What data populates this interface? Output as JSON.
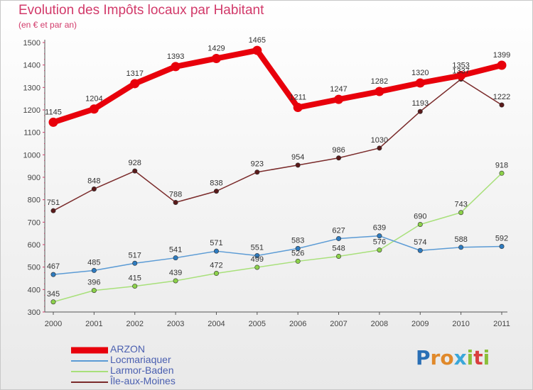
{
  "title": "Evolution des Impôts locaux par Habitant",
  "subtitle": "(en € et par an)",
  "logo": {
    "text": "Proxiti",
    "letters": [
      "P",
      "r",
      "o",
      "x",
      "i",
      "t",
      "i"
    ],
    "colors": [
      "#2a6fb5",
      "#e0892b",
      "#e0892b",
      "#3aa7d9",
      "#8bbf3a",
      "#d93f3f",
      "#8bbf3a"
    ]
  },
  "chart_data": {
    "type": "line",
    "x": [
      "2000",
      "2001",
      "2002",
      "2003",
      "2004",
      "2005",
      "2006",
      "2007",
      "2008",
      "2009",
      "2010",
      "2011"
    ],
    "ylim": [
      300,
      1500
    ],
    "yticks": [
      300,
      400,
      500,
      600,
      700,
      800,
      900,
      1000,
      1100,
      1200,
      1300,
      1400,
      1500
    ],
    "grid": false,
    "legend_position": "bottom-left",
    "series": [
      {
        "name": "ARZON",
        "color": "#e8000b",
        "marker": "#e8000b",
        "width": "thick",
        "values": [
          1145,
          1204,
          1317,
          1393,
          1429,
          1465,
          1211,
          1247,
          1282,
          1320,
          1353,
          1399
        ]
      },
      {
        "name": "Locmariaquer",
        "color": "#5b9bd5",
        "marker": "#2e7bbf",
        "width": "thin",
        "values": [
          467,
          485,
          517,
          541,
          571,
          551,
          583,
          627,
          639,
          574,
          588,
          592
        ]
      },
      {
        "name": "Larmor-Baden",
        "color": "#a8e07a",
        "marker": "#8cd14a",
        "width": "thin",
        "values": [
          345,
          396,
          415,
          439,
          472,
          499,
          526,
          548,
          576,
          690,
          743,
          918
        ]
      },
      {
        "name": "Île-aux-Moines",
        "color": "#7a2a2a",
        "marker": "#5a1a1a",
        "width": "thin",
        "values": [
          751,
          848,
          928,
          788,
          838,
          923,
          954,
          986,
          1030,
          1193,
          1337,
          1222
        ]
      }
    ]
  }
}
